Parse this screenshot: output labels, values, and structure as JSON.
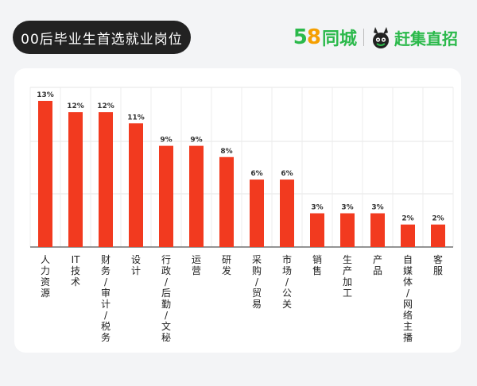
{
  "header": {
    "title": "00后毕业生首选就业岗位",
    "brand_58": "58",
    "brand_tongcheng": "同城",
    "brand_ganji": "赶集直招"
  },
  "colors": {
    "bar": "#f23a1f",
    "brand_green": "#2bb94b",
    "brand_orange": "#f59f00",
    "title_bg": "#222222"
  },
  "chart_data": {
    "type": "bar",
    "title": "",
    "xlabel": "",
    "ylabel": "",
    "categories": [
      "人力资源",
      "IT技术",
      "财务/审计/税务",
      "设计",
      "行政/后勤/文秘",
      "运营",
      "研发",
      "采购/贸易",
      "市场/公关",
      "销售",
      "生产加工",
      "产品",
      "自媒体/网络主播",
      "客服"
    ],
    "values": [
      13,
      12,
      12,
      11,
      9,
      9,
      8,
      6,
      6,
      3,
      3,
      3,
      2,
      2
    ],
    "value_labels": [
      "13%",
      "12%",
      "12%",
      "11%",
      "9%",
      "9%",
      "8%",
      "6%",
      "6%",
      "3%",
      "3%",
      "3%",
      "2%",
      "2%"
    ],
    "ylim": [
      0,
      14.2
    ],
    "grid": true
  }
}
